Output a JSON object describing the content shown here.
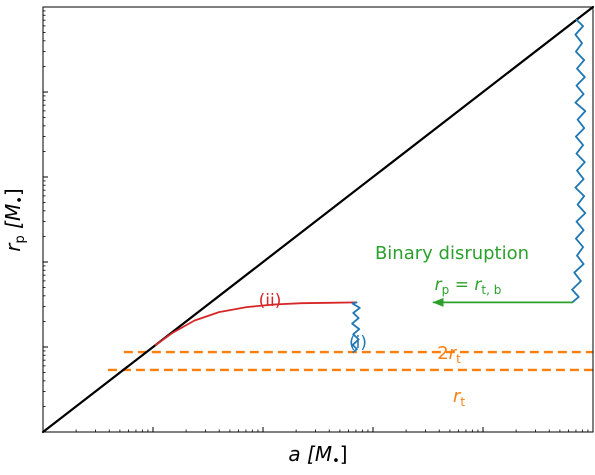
{
  "chart_data": {
    "type": "line",
    "title": "",
    "xlabel": {
      "main": "a",
      "unit": "[M",
      "sub": "•",
      "close": "]"
    },
    "ylabel": {
      "main": "r",
      "sub": "p",
      "unit": "[M",
      "unitsub": "•",
      "close": "]"
    },
    "x_scale": "log",
    "y_scale": "log",
    "grid": false,
    "legend": "none",
    "series": [
      {
        "kind": "diagonal",
        "color": "#000000",
        "points": [
          [
            0.0,
            0.0
          ],
          [
            1.0,
            1.0
          ]
        ]
      },
      {
        "kind": "trajectory-disruption",
        "color": "#1f77b4",
        "points": [
          [
            0.97,
            0.97
          ],
          [
            0.982,
            0.955
          ],
          [
            0.968,
            0.935
          ],
          [
            0.98,
            0.915
          ],
          [
            0.969,
            0.895
          ],
          [
            0.984,
            0.875
          ],
          [
            0.971,
            0.855
          ],
          [
            0.985,
            0.835
          ],
          [
            0.97,
            0.815
          ],
          [
            0.983,
            0.795
          ],
          [
            0.968,
            0.775
          ],
          [
            0.986,
            0.755
          ],
          [
            0.972,
            0.735
          ],
          [
            0.984,
            0.715
          ],
          [
            0.969,
            0.695
          ],
          [
            0.982,
            0.675
          ],
          [
            0.97,
            0.655
          ],
          [
            0.985,
            0.635
          ],
          [
            0.971,
            0.615
          ],
          [
            0.983,
            0.595
          ],
          [
            0.968,
            0.575
          ],
          [
            0.984,
            0.555
          ],
          [
            0.972,
            0.535
          ],
          [
            0.986,
            0.515
          ],
          [
            0.97,
            0.495
          ],
          [
            0.983,
            0.475
          ],
          [
            0.969,
            0.455
          ],
          [
            0.982,
            0.435
          ],
          [
            0.971,
            0.415
          ],
          [
            0.983,
            0.395
          ],
          [
            0.966,
            0.375
          ],
          [
            0.978,
            0.355
          ],
          [
            0.962,
            0.335
          ],
          [
            0.974,
            0.318
          ],
          [
            0.962,
            0.305
          ]
        ]
      },
      {
        "kind": "trajectory-binary-disruption",
        "color": "#2ca02c",
        "points": [
          [
            0.962,
            0.305
          ],
          [
            0.71,
            0.305
          ]
        ],
        "arrow_at": [
          0.71,
          0.305
        ]
      },
      {
        "kind": "trajectory-ii",
        "color": "#d62728",
        "points": [
          [
            0.205,
            0.205
          ],
          [
            0.235,
            0.233
          ],
          [
            0.275,
            0.262
          ],
          [
            0.32,
            0.282
          ],
          [
            0.37,
            0.294
          ],
          [
            0.42,
            0.3
          ],
          [
            0.47,
            0.303
          ],
          [
            0.52,
            0.304
          ],
          [
            0.57,
            0.305
          ]
        ]
      },
      {
        "kind": "trajectory-i",
        "color": "#1f77b4",
        "points": [
          [
            0.57,
            0.305
          ],
          [
            0.563,
            0.302
          ],
          [
            0.576,
            0.292
          ],
          [
            0.564,
            0.28
          ],
          [
            0.574,
            0.268
          ],
          [
            0.562,
            0.255
          ],
          [
            0.575,
            0.242
          ],
          [
            0.564,
            0.23
          ],
          [
            0.574,
            0.218
          ],
          [
            0.563,
            0.205
          ],
          [
            0.571,
            0.195
          ],
          [
            0.564,
            0.188
          ]
        ]
      }
    ],
    "reference_lines": [
      {
        "name": "2rt",
        "y": 0.188,
        "x_start": 0.147,
        "color": "#ff7f0e",
        "style": "dashed"
      },
      {
        "name": "rt",
        "y": 0.146,
        "x_start": 0.118,
        "color": "#ff7f0e",
        "style": "dashed"
      }
    ],
    "annotations": {
      "binary_disruption": {
        "text": "Binary disruption",
        "color": "#2ca02c"
      },
      "rp_equation": {
        "lhs": "r",
        "lhs_sub": "p",
        "eq": " = ",
        "rhs": "r",
        "rhs_sub": "t, b",
        "color": "#2ca02c"
      },
      "label_ii": {
        "text": "(ii)",
        "color": "#d62728"
      },
      "label_i": {
        "text": "(i)",
        "color": "#1f77b4"
      },
      "label_2rt": {
        "prefix": "2",
        "main": "r",
        "sub": "t",
        "color": "#ff7f0e"
      },
      "label_rt": {
        "main": "r",
        "sub": "t",
        "color": "#ff7f0e"
      }
    }
  }
}
